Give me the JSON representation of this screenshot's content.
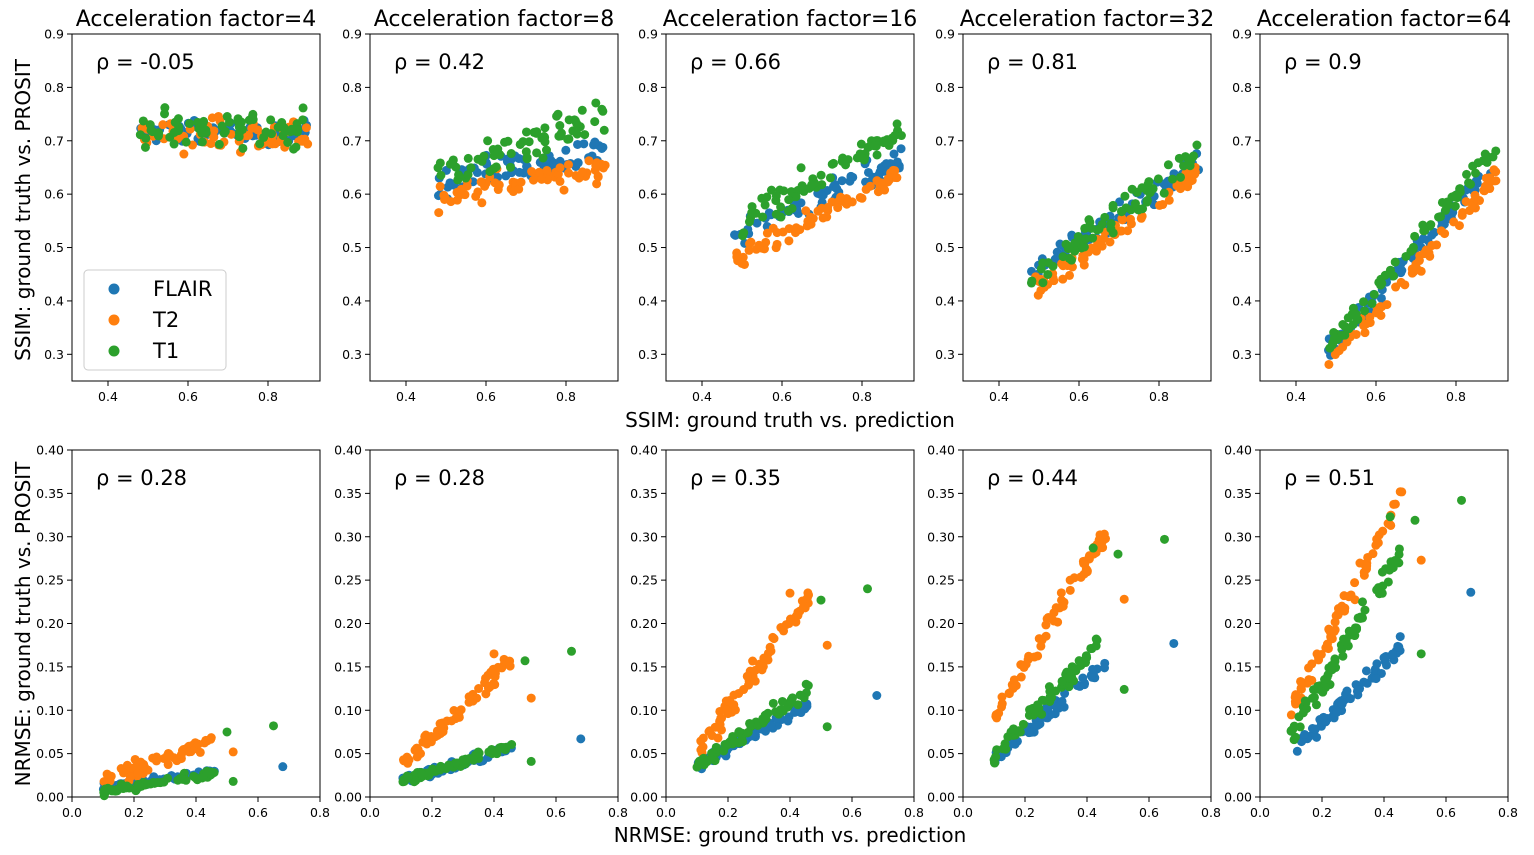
{
  "figure": {
    "row1_xlabel": "SSIM: ground truth vs. prediction",
    "row1_ylabel": "SSIM: ground truth vs. PROSIT",
    "row2_xlabel": "NRMSE: ground truth vs. prediction",
    "row2_ylabel": "NRMSE: ground truth vs. PROSIT"
  },
  "colors": {
    "FLAIR": "#1f77b4",
    "T2": "#ff7f0e",
    "T1": "#2ca02c"
  },
  "legend": [
    "FLAIR",
    "T2",
    "T1"
  ],
  "rho_prefix": "ρ = ",
  "panel_titles": [
    "Acceleration factor=4",
    "Acceleration factor=8",
    "Acceleration factor=16",
    "Acceleration factor=32",
    "Acceleration factor=64"
  ],
  "chart_data": [
    {
      "type": "scatter",
      "metric": "SSIM",
      "xlim": [
        0.31,
        0.93
      ],
      "ylim": [
        0.25,
        0.9
      ],
      "xticks": [
        "0.4",
        "0.6",
        "0.8"
      ],
      "yticks": [
        "0.3",
        "0.4",
        "0.5",
        "0.6",
        "0.7",
        "0.8",
        "0.9"
      ],
      "panels": [
        {
          "factor": 4,
          "rho": "-0.05",
          "model": {
            "FLAIR": {
              "center": 0.715,
              "spread": 0.02
            },
            "T2": {
              "center": 0.71,
              "spread": 0.03
            },
            "T1": {
              "center": 0.725,
              "spread": 0.035
            }
          }
        },
        {
          "factor": 8,
          "rho": "0.42",
          "model": {
            "FLAIR": {
              "slope": 0.15,
              "intercept": 0.55,
              "spread": 0.03
            },
            "T2": {
              "slope": 0.15,
              "intercept": 0.52,
              "spread": 0.025
            },
            "T1": {
              "slope": 0.25,
              "intercept": 0.52,
              "spread": 0.035
            }
          }
        },
        {
          "factor": 16,
          "rho": "0.66",
          "model": {
            "FLAIR": {
              "slope": 0.35,
              "intercept": 0.35,
              "spread": 0.025
            },
            "T2": {
              "slope": 0.4,
              "intercept": 0.28,
              "spread": 0.02
            },
            "T1": {
              "slope": 0.45,
              "intercept": 0.32,
              "spread": 0.03
            }
          }
        },
        {
          "factor": 32,
          "rho": "0.81",
          "model": {
            "FLAIR": {
              "slope": 0.5,
              "intercept": 0.21,
              "spread": 0.02
            },
            "T2": {
              "slope": 0.55,
              "intercept": 0.15,
              "spread": 0.02
            },
            "T1": {
              "slope": 0.55,
              "intercept": 0.18,
              "spread": 0.025
            }
          }
        },
        {
          "factor": 64,
          "rho": "0.9",
          "model": {
            "FLAIR": {
              "slope": 0.85,
              "intercept": -0.1,
              "spread": 0.02
            },
            "T2": {
              "slope": 0.85,
              "intercept": -0.13,
              "spread": 0.02
            },
            "T1": {
              "slope": 0.9,
              "intercept": -0.12,
              "spread": 0.02
            }
          }
        }
      ]
    },
    {
      "type": "scatter",
      "metric": "NRMSE",
      "xlim": [
        0.0,
        0.8
      ],
      "ylim": [
        0.0,
        0.4
      ],
      "xticks": [
        "0.0",
        "0.2",
        "0.4",
        "0.6",
        "0.8"
      ],
      "yticks": [
        "0.00",
        "0.05",
        "0.10",
        "0.15",
        "0.20",
        "0.25",
        "0.30",
        "0.35",
        "0.40"
      ],
      "panels": [
        {
          "factor": 4,
          "rho": "0.28",
          "model": {
            "FLAIR": {
              "slope": 0.05,
              "intercept": 0.006,
              "spread": 0.004
            },
            "T2": {
              "slope": 0.13,
              "intercept": 0.005,
              "spread": 0.008
            },
            "T1": {
              "slope": 0.06,
              "intercept": 0.0,
              "spread": 0.004
            }
          },
          "outliers": [
            [
              0.68,
              0.035,
              "FLAIR"
            ],
            [
              0.52,
              0.052,
              "T2"
            ],
            [
              0.65,
              0.082,
              "T1"
            ],
            [
              0.5,
              0.075,
              "T1"
            ],
            [
              0.52,
              0.018,
              "T1"
            ]
          ]
        },
        {
          "factor": 8,
          "rho": "0.28",
          "model": {
            "FLAIR": {
              "slope": 0.1,
              "intercept": 0.01,
              "spread": 0.005
            },
            "T2": {
              "slope": 0.35,
              "intercept": 0.0,
              "spread": 0.01
            },
            "T1": {
              "slope": 0.12,
              "intercept": 0.005,
              "spread": 0.005
            }
          },
          "outliers": [
            [
              0.68,
              0.067,
              "FLAIR"
            ],
            [
              0.52,
              0.114,
              "T2"
            ],
            [
              0.65,
              0.168,
              "T1"
            ],
            [
              0.5,
              0.157,
              "T1"
            ],
            [
              0.52,
              0.041,
              "T1"
            ],
            [
              0.4,
              0.165,
              "T2"
            ]
          ]
        },
        {
          "factor": 16,
          "rho": "0.35",
          "model": {
            "FLAIR": {
              "slope": 0.2,
              "intercept": 0.015,
              "spread": 0.007
            },
            "T2": {
              "slope": 0.5,
              "intercept": 0.0,
              "spread": 0.012
            },
            "T1": {
              "slope": 0.25,
              "intercept": 0.01,
              "spread": 0.008
            }
          },
          "outliers": [
            [
              0.68,
              0.117,
              "FLAIR"
            ],
            [
              0.52,
              0.175,
              "T2"
            ],
            [
              0.65,
              0.24,
              "T1"
            ],
            [
              0.5,
              0.227,
              "T1"
            ],
            [
              0.52,
              0.081,
              "T1"
            ],
            [
              0.4,
              0.235,
              "T2"
            ]
          ]
        },
        {
          "factor": 32,
          "rho": "0.44",
          "model": {
            "FLAIR": {
              "slope": 0.3,
              "intercept": 0.015,
              "spread": 0.008
            },
            "T2": {
              "slope": 0.6,
              "intercept": 0.03,
              "spread": 0.015
            },
            "T1": {
              "slope": 0.38,
              "intercept": 0.01,
              "spread": 0.01
            }
          },
          "outliers": [
            [
              0.68,
              0.177,
              "FLAIR"
            ],
            [
              0.52,
              0.228,
              "T2"
            ],
            [
              0.65,
              0.297,
              "T1"
            ],
            [
              0.5,
              0.28,
              "T1"
            ],
            [
              0.52,
              0.124,
              "T1"
            ],
            [
              0.42,
              0.287,
              "T1"
            ]
          ]
        },
        {
          "factor": 64,
          "rho": "0.51",
          "model": {
            "FLAIR": {
              "slope": 0.35,
              "intercept": 0.015,
              "spread": 0.01
            },
            "T2": {
              "slope": 0.7,
              "intercept": 0.03,
              "spread": 0.015
            },
            "T1": {
              "slope": 0.6,
              "intercept": 0.01,
              "spread": 0.012
            }
          },
          "outliers": [
            [
              0.68,
              0.236,
              "FLAIR"
            ],
            [
              0.52,
              0.273,
              "T2"
            ],
            [
              0.65,
              0.342,
              "T1"
            ],
            [
              0.5,
              0.319,
              "T1"
            ],
            [
              0.52,
              0.165,
              "T1"
            ],
            [
              0.42,
              0.323,
              "T1"
            ]
          ]
        }
      ]
    }
  ]
}
